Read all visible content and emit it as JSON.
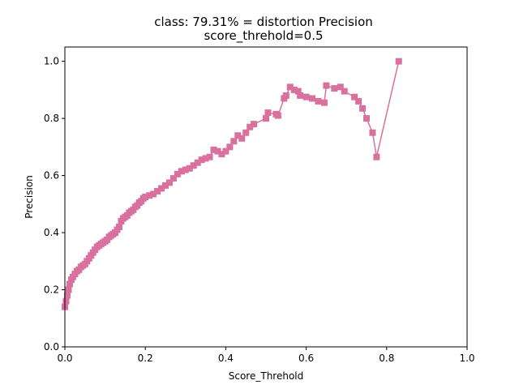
{
  "chart_data": {
    "type": "line",
    "title": "class: 79.31% = distortion Precision",
    "subtitle": "score_threhold=0.5",
    "xlabel": "Score_Threhold",
    "ylabel": "Precision",
    "xlim": [
      0.0,
      1.0
    ],
    "ylim": [
      0.0,
      1.05
    ],
    "xticks": [
      "0.0",
      "0.2",
      "0.4",
      "0.6",
      "0.8",
      "1.0"
    ],
    "yticks": [
      "0.0",
      "0.2",
      "0.4",
      "0.6",
      "0.8",
      "1.0"
    ],
    "grid": false,
    "marker": "square",
    "series": [
      {
        "color": "#d9719e",
        "x": [
          0.0,
          0.003,
          0.006,
          0.009,
          0.012,
          0.016,
          0.02,
          0.025,
          0.03,
          0.035,
          0.04,
          0.045,
          0.05,
          0.055,
          0.06,
          0.065,
          0.07,
          0.075,
          0.08,
          0.085,
          0.09,
          0.095,
          0.1,
          0.105,
          0.11,
          0.115,
          0.12,
          0.125,
          0.13,
          0.135,
          0.14,
          0.145,
          0.15,
          0.155,
          0.16,
          0.165,
          0.17,
          0.175,
          0.18,
          0.185,
          0.19,
          0.195,
          0.2,
          0.21,
          0.22,
          0.23,
          0.24,
          0.25,
          0.26,
          0.27,
          0.28,
          0.29,
          0.3,
          0.31,
          0.32,
          0.33,
          0.34,
          0.35,
          0.36,
          0.37,
          0.38,
          0.39,
          0.4,
          0.41,
          0.42,
          0.43,
          0.44,
          0.45,
          0.46,
          0.47,
          0.5,
          0.505,
          0.525,
          0.53,
          0.545,
          0.55,
          0.56,
          0.57,
          0.58,
          0.585,
          0.6,
          0.615,
          0.63,
          0.645,
          0.65,
          0.67,
          0.685,
          0.695,
          0.72,
          0.73,
          0.74,
          0.75,
          0.765,
          0.775,
          0.83
        ],
        "values": [
          0.14,
          0.16,
          0.18,
          0.2,
          0.22,
          0.235,
          0.245,
          0.255,
          0.265,
          0.27,
          0.28,
          0.285,
          0.29,
          0.3,
          0.31,
          0.32,
          0.33,
          0.34,
          0.35,
          0.355,
          0.36,
          0.365,
          0.37,
          0.375,
          0.385,
          0.39,
          0.395,
          0.4,
          0.41,
          0.42,
          0.44,
          0.45,
          0.455,
          0.46,
          0.47,
          0.475,
          0.48,
          0.49,
          0.495,
          0.505,
          0.51,
          0.52,
          0.525,
          0.53,
          0.535,
          0.545,
          0.555,
          0.565,
          0.575,
          0.59,
          0.605,
          0.615,
          0.62,
          0.625,
          0.635,
          0.645,
          0.655,
          0.66,
          0.665,
          0.69,
          0.685,
          0.675,
          0.685,
          0.7,
          0.72,
          0.74,
          0.73,
          0.75,
          0.77,
          0.78,
          0.8,
          0.82,
          0.815,
          0.81,
          0.87,
          0.88,
          0.91,
          0.9,
          0.895,
          0.88,
          0.875,
          0.87,
          0.86,
          0.855,
          0.915,
          0.905,
          0.91,
          0.895,
          0.875,
          0.86,
          0.835,
          0.8,
          0.75,
          0.665,
          1.0
        ]
      }
    ]
  }
}
